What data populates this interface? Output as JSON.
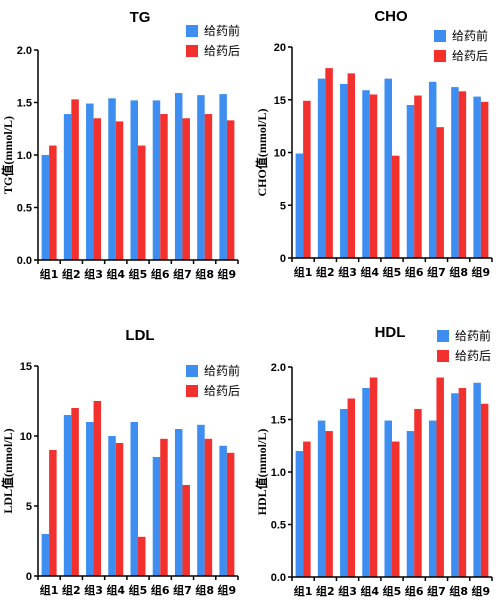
{
  "series_colors": {
    "before": "#3d8ef0",
    "after": "#f2312f"
  },
  "chart_data": [
    {
      "type": "bar",
      "title": "TG",
      "ylabel": "TG值(mmol/L)",
      "ylim": [
        0,
        2.0
      ],
      "yticks": [
        "0.0",
        "0.5",
        "1.0",
        "1.5",
        "2.0"
      ],
      "categories": [
        "组1",
        "组2",
        "组3",
        "组4",
        "组5",
        "组6",
        "组7",
        "组8",
        "组9"
      ],
      "series": [
        {
          "name": "给药前",
          "values": [
            1.0,
            1.39,
            1.49,
            1.54,
            1.52,
            1.52,
            1.59,
            1.57,
            1.58
          ]
        },
        {
          "name": "给药后",
          "values": [
            1.09,
            1.53,
            1.35,
            1.32,
            1.09,
            1.39,
            1.35,
            1.39,
            1.33
          ]
        }
      ],
      "legend": "top-right"
    },
    {
      "type": "bar",
      "title": "CHO",
      "ylabel": "CHO值(mmol/L)",
      "ylim": [
        0,
        20
      ],
      "yticks": [
        "0",
        "5",
        "10",
        "15",
        "20"
      ],
      "categories": [
        "组1",
        "组2",
        "组3",
        "组4",
        "组5",
        "组6",
        "组7",
        "组8",
        "组9"
      ],
      "series": [
        {
          "name": "给药前",
          "values": [
            9.9,
            17.0,
            16.5,
            15.9,
            17.0,
            14.5,
            16.7,
            16.2,
            15.3
          ]
        },
        {
          "name": "给药后",
          "values": [
            14.9,
            18.0,
            17.5,
            15.5,
            9.7,
            15.4,
            12.4,
            15.8,
            14.8
          ]
        }
      ],
      "legend": "top-right"
    },
    {
      "type": "bar",
      "title": "LDL",
      "ylabel": "LDL值(mmol/L)",
      "ylim": [
        0,
        15
      ],
      "yticks": [
        "0",
        "5",
        "10",
        "15"
      ],
      "categories": [
        "组1",
        "组2",
        "组3",
        "组4",
        "组5",
        "组6",
        "组7",
        "组8",
        "组9"
      ],
      "series": [
        {
          "name": "给药前",
          "values": [
            3.0,
            11.5,
            11.0,
            10.0,
            11.0,
            8.5,
            10.5,
            10.8,
            9.3
          ]
        },
        {
          "name": "给药后",
          "values": [
            9.0,
            12.0,
            12.5,
            9.5,
            2.8,
            9.8,
            6.5,
            9.8,
            8.8
          ]
        }
      ],
      "legend": "top-right"
    },
    {
      "type": "bar",
      "title": "HDL",
      "ylabel": "HDL值(mmol/L)",
      "ylim": [
        0,
        2.0
      ],
      "yticks": [
        "0.0",
        "0.5",
        "1.0",
        "1.5",
        "2.0"
      ],
      "categories": [
        "组1",
        "组2",
        "组3",
        "组4",
        "组5",
        "组6",
        "组7",
        "组8",
        "组9"
      ],
      "series": [
        {
          "name": "给药前",
          "values": [
            1.2,
            1.49,
            1.6,
            1.8,
            1.49,
            1.39,
            1.49,
            1.75,
            1.85
          ]
        },
        {
          "name": "给药后",
          "values": [
            1.29,
            1.39,
            1.7,
            1.9,
            1.29,
            1.6,
            1.9,
            1.8,
            1.65
          ]
        }
      ],
      "legend": "top-right"
    }
  ]
}
